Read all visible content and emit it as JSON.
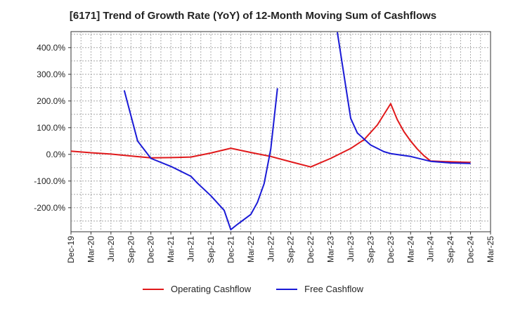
{
  "title": "[6171]  Trend of Growth Rate (YoY) of 12-Month Moving Sum of Cashflows",
  "chart_data": {
    "type": "line",
    "title": "[6171]  Trend of Growth Rate (YoY) of 12-Month Moving Sum of Cashflows",
    "xlabel": "",
    "ylabel": "",
    "x_ticks": [
      "Dec-19",
      "Mar-20",
      "Jun-20",
      "Sep-20",
      "Dec-20",
      "Mar-21",
      "Jun-21",
      "Sep-21",
      "Dec-21",
      "Mar-22",
      "Jun-22",
      "Sep-22",
      "Dec-22",
      "Mar-23",
      "Jun-23",
      "Sep-23",
      "Dec-23",
      "Mar-24",
      "Jun-24",
      "Sep-24",
      "Dec-24",
      "Mar-25"
    ],
    "y_ticks": [
      "-200.0%",
      "-100.0%",
      "0.0%",
      "100.0%",
      "200.0%",
      "300.0%",
      "400.0%"
    ],
    "y_tick_values": [
      -200,
      -100,
      0,
      100,
      200,
      300,
      400
    ],
    "ylim": [
      -290,
      460
    ],
    "grid": true,
    "legend_position": "bottom",
    "series": [
      {
        "name": "Operating Cashflow",
        "color": "#e0191b",
        "points": [
          [
            "Dec-19",
            12
          ],
          [
            "Mar-20",
            6
          ],
          [
            "Jun-20",
            1
          ],
          [
            "Sep-20",
            -6
          ],
          [
            "Dec-20",
            -13
          ],
          [
            "Mar-21",
            -12
          ],
          [
            "Jun-21",
            -10
          ],
          [
            "Sep-21",
            5
          ],
          [
            "Dec-21",
            23
          ],
          [
            "Mar-22",
            7
          ],
          [
            "Jun-22",
            -8
          ],
          [
            "Sep-22",
            -28
          ],
          [
            "Dec-22",
            -47
          ],
          [
            "Mar-23",
            -15
          ],
          [
            "Jun-23",
            22
          ],
          [
            "Aug-23",
            55
          ],
          [
            "Oct-23",
            110
          ],
          [
            "Dec-23",
            190
          ],
          [
            "Jan-24",
            130
          ],
          [
            "Feb-24",
            85
          ],
          [
            "Mar-24",
            50
          ],
          [
            "Apr-24",
            20
          ],
          [
            "May-24",
            -5
          ],
          [
            "Jun-24",
            -25
          ],
          [
            "Sep-24",
            -28
          ],
          [
            "Dec-24",
            -30
          ]
        ]
      },
      {
        "name": "Free Cashflow",
        "color": "#1a1ad6",
        "points": [
          [
            "Aug-20",
            240
          ],
          [
            "Oct-20",
            50
          ],
          [
            "Dec-20",
            -15
          ],
          [
            "Mar-21",
            -45
          ],
          [
            "Jun-21",
            -82
          ],
          [
            "Jul-21",
            -108
          ],
          [
            "Sep-21",
            -155
          ],
          [
            "Nov-21",
            -210
          ],
          [
            "Dec-21",
            -282
          ],
          [
            "Jan-22",
            -262
          ],
          [
            "Mar-22",
            -225
          ],
          [
            "Apr-22",
            -180
          ],
          [
            "May-22",
            -110
          ],
          [
            "Jun-22",
            20
          ],
          [
            "Jul-22",
            248
          ]
        ]
      },
      {
        "name": "Free Cashflow",
        "color": "#1a1ad6",
        "points": [
          [
            "Apr-23",
            458
          ],
          [
            "Jun-23",
            135
          ],
          [
            "Jul-23",
            80
          ],
          [
            "Sep-23",
            35
          ],
          [
            "Nov-23",
            10
          ],
          [
            "Dec-23",
            3
          ],
          [
            "Mar-24",
            -8
          ],
          [
            "Jun-24",
            -26
          ],
          [
            "Sep-24",
            -32
          ],
          [
            "Dec-24",
            -34
          ]
        ]
      }
    ]
  },
  "legend": {
    "items": [
      {
        "label": "Operating Cashflow",
        "color": "#e0191b"
      },
      {
        "label": "Free Cashflow",
        "color": "#1a1ad6"
      }
    ]
  }
}
